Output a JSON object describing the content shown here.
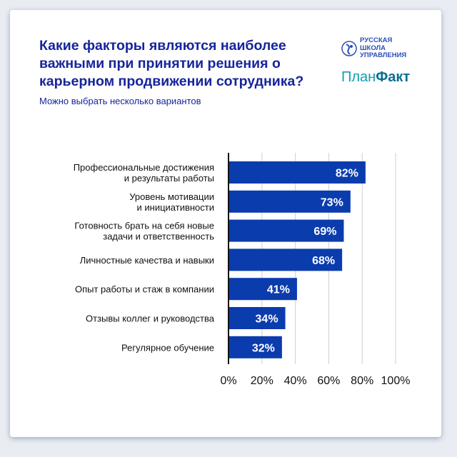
{
  "logos": {
    "rsu": "РУССКАЯ ШКОЛА УПРАВЛЕНИЯ",
    "rsu_lines": [
      "РУССКАЯ",
      "ШКОЛА",
      "УПРАВЛЕНИЯ"
    ],
    "planfact_a": "План",
    "planfact_b": "Факт"
  },
  "colors": {
    "bar": "#0b3cae",
    "title": "#16259a",
    "grid": "#cfcfcf"
  },
  "chart_data": {
    "type": "bar",
    "orientation": "horizontal",
    "title": "Какие факторы являются наиболее важными при принятии решения о карьерном продвижении сотрудника?",
    "subtitle": "Можно выбрать несколько вариантов",
    "categories": [
      [
        "Профессиональные достижения",
        "и результаты работы"
      ],
      [
        "Уровень мотивации",
        "и инициативности"
      ],
      [
        "Готовность брать на себя новые",
        "задачи и ответственность"
      ],
      [
        "Личностные качества и навыки"
      ],
      [
        "Опыт работы и стаж в компании"
      ],
      [
        "Отзывы коллег и руководства"
      ],
      [
        "Регулярное обучение"
      ]
    ],
    "values": [
      82,
      73,
      69,
      68,
      41,
      34,
      32
    ],
    "value_labels": [
      "82%",
      "73%",
      "69%",
      "68%",
      "41%",
      "34%",
      "32%"
    ],
    "xlim": [
      0,
      100
    ],
    "xticks": [
      "0%",
      "20%",
      "40%",
      "60%",
      "80%",
      "100%"
    ],
    "grid": true
  }
}
